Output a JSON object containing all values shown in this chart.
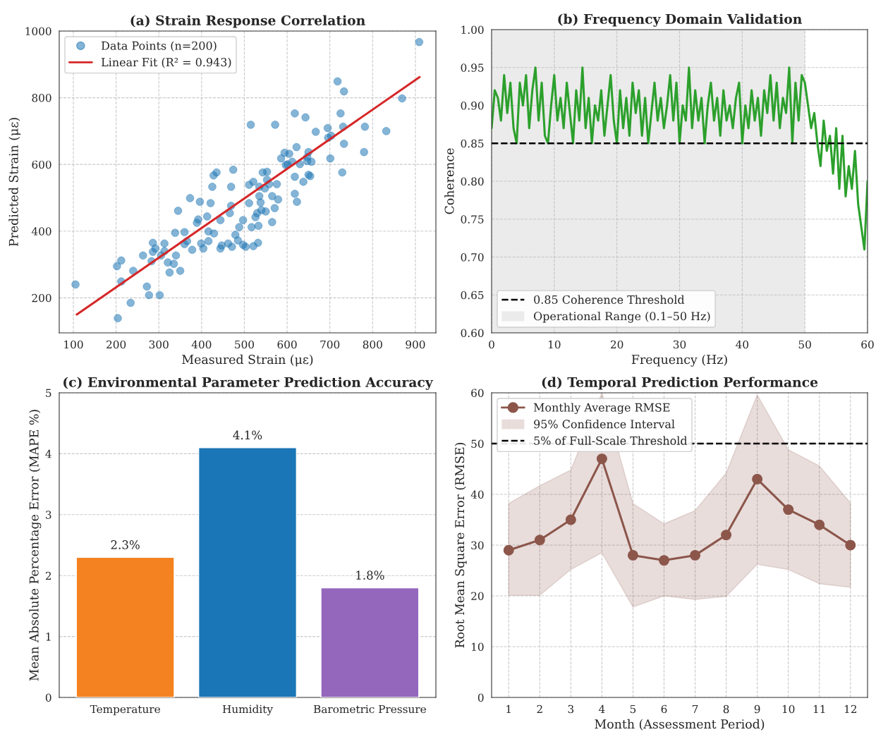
{
  "chart_data": [
    {
      "type": "scatter",
      "title": "(a) Strain Response Correlation",
      "xlabel": "Measured Strain (με)",
      "ylabel": "Predicted Strain (με)",
      "xlim": [
        67,
        948
      ],
      "ylim": [
        95,
        1000
      ],
      "xticks": [
        100,
        200,
        300,
        400,
        500,
        600,
        700,
        800,
        900
      ],
      "yticks": [
        200,
        400,
        600,
        800,
        1000
      ],
      "grid": true,
      "legend": "top left",
      "series": [
        {
          "type": "scatter",
          "name": "Data Points (n=200)",
          "color": "#1f77b4",
          "marker": "circle",
          "x": [
            105,
            204,
            202,
            212,
            212,
            234,
            240,
            272,
            277,
            302,
            283,
            263,
            286,
            286,
            292,
            313,
            313,
            325,
            335,
            340,
            350,
            338,
            345,
            373,
            360,
            366,
            378,
            389,
            399,
            404,
            416,
            429,
            428,
            435,
            425,
            413,
            421,
            396,
            444,
            447,
            469,
            474,
            469,
            479,
            471,
            462,
            466,
            497,
            497,
            517,
            533,
            532,
            511,
            515,
            535,
            538,
            543,
            548,
            565,
            572,
            576,
            579,
            571,
            597,
            605,
            601,
            618,
            622,
            612,
            618,
            618,
            623,
            643,
            647,
            647,
            657,
            654,
            667,
            695,
            696,
            701,
            718,
            725,
            733,
            729,
            733,
            731,
            782,
            780,
            832,
            869,
            909,
            526,
            565,
            550,
            540,
            503,
            444,
            488,
            416,
            485,
            521,
            530,
            553,
            586,
            553,
            594,
            638,
            650,
            703,
            650,
            630,
            392,
            360,
            321,
            305,
            535,
            558,
            511,
            521
          ],
          "values": [
            240,
            139,
            295,
            312,
            249,
            185,
            281,
            234,
            208,
            208,
            310,
            327,
            365,
            338,
            348,
            340,
            363,
            276,
            302,
            327,
            281,
            395,
            461,
            499,
            397,
            370,
            344,
            425,
            363,
            348,
            370,
            393,
            567,
            576,
            533,
            444,
            484,
            488,
            433,
            357,
            533,
            584,
            476,
            389,
            353,
            363,
            454,
            433,
            359,
            412,
            416,
            365,
            484,
            719,
            505,
            486,
            576,
            528,
            505,
            719,
            541,
            495,
            469,
            598,
            632,
            600,
            753,
            652,
            608,
            563,
            512,
            488,
            741,
            622,
            610,
            608,
            565,
            698,
            709,
            680,
            618,
            849,
            753,
            819,
            576,
            662,
            713,
            713,
            637,
            700,
            798,
            967,
            442,
            427,
            459,
            463,
            353,
            348,
            412,
            399,
            372,
            355,
            454,
            554,
            618,
            578,
            635,
            548,
            569,
            686,
            637,
            601,
            435,
            361,
            306,
            327,
            533,
            541,
            539,
            548
          ]
        },
        {
          "type": "line",
          "name": "Linear Fit (R² = 0.943)",
          "color": "#d62728",
          "x": [
            108,
            910
          ],
          "values": [
            150,
            862
          ]
        }
      ]
    },
    {
      "type": "line",
      "title": "(b) Frequency Domain Validation",
      "xlabel": "Frequency (Hz)",
      "ylabel": "Coherence",
      "xlim": [
        0,
        60
      ],
      "ylim": [
        0.6,
        1.0
      ],
      "xticks": [
        0,
        10,
        20,
        30,
        40,
        50,
        60
      ],
      "yticks": [
        {
          "value": 0.6,
          "label": "0.60"
        },
        {
          "value": 0.65,
          "label": "0.65"
        },
        {
          "value": 0.7,
          "label": "0.70"
        },
        {
          "value": 0.75,
          "label": "0.75"
        },
        {
          "value": 0.8,
          "label": "0.80"
        },
        {
          "value": 0.85,
          "label": "0.85"
        },
        {
          "value": 0.9,
          "label": "0.90"
        },
        {
          "value": 0.95,
          "label": "0.95"
        },
        {
          "value": 1.0,
          "label": "1.00"
        }
      ],
      "grid": true,
      "legend": "bottom left",
      "ref_lines": [
        {
          "axis": "y",
          "value": 0.85,
          "label": "0.85 Coherence Threshold",
          "color": "#000000",
          "line_style": "dashed"
        }
      ],
      "bands": [
        {
          "axis": "x",
          "from": 0.1,
          "to": 50,
          "label": "Operational Range (0.1–50 Hz)",
          "color": "#ebebeb"
        }
      ],
      "series": [
        {
          "type": "line",
          "color": "#2ca02c",
          "x": [
            0,
            0.5,
            1,
            1.5,
            2,
            2.5,
            3,
            3.5,
            4,
            4.5,
            5,
            5.5,
            6,
            6.5,
            7,
            7.5,
            8,
            8.5,
            9,
            9.5,
            10,
            10.5,
            11,
            11.5,
            12,
            12.5,
            13,
            13.5,
            14,
            14.5,
            15,
            15.5,
            16,
            16.5,
            17,
            17.5,
            18,
            18.5,
            19,
            19.5,
            20,
            20.5,
            21,
            21.5,
            22,
            22.5,
            23,
            23.5,
            24,
            24.5,
            25,
            25.5,
            26,
            26.5,
            27,
            27.5,
            28,
            28.5,
            29,
            29.5,
            30,
            30.5,
            31,
            31.5,
            32,
            32.5,
            33,
            33.5,
            34,
            34.5,
            35,
            35.5,
            36,
            36.5,
            37,
            37.5,
            38,
            38.5,
            39,
            39.5,
            40,
            40.5,
            41,
            41.5,
            42,
            42.5,
            43,
            43.5,
            44,
            44.5,
            45,
            45.5,
            46,
            46.5,
            47,
            47.5,
            48,
            48.5,
            49,
            49.5,
            50,
            50.5,
            51,
            51.5,
            52,
            52.5,
            53,
            53.5,
            54,
            54.5,
            55,
            55.5,
            56,
            56.5,
            57,
            57.5,
            58,
            58.5,
            59,
            59.5,
            60
          ],
          "values": [
            0.87,
            0.92,
            0.91,
            0.88,
            0.94,
            0.89,
            0.93,
            0.87,
            0.85,
            0.93,
            0.9,
            0.94,
            0.87,
            0.92,
            0.95,
            0.88,
            0.93,
            0.86,
            0.85,
            0.9,
            0.94,
            0.88,
            0.91,
            0.87,
            0.93,
            0.89,
            0.85,
            0.92,
            0.88,
            0.95,
            0.87,
            0.91,
            0.85,
            0.9,
            0.88,
            0.92,
            0.86,
            0.9,
            0.94,
            0.88,
            0.85,
            0.92,
            0.87,
            0.91,
            0.86,
            0.93,
            0.89,
            0.92,
            0.86,
            0.91,
            0.85,
            0.89,
            0.93,
            0.88,
            0.91,
            0.87,
            0.9,
            0.94,
            0.88,
            0.93,
            0.85,
            0.9,
            0.88,
            0.95,
            0.87,
            0.92,
            0.88,
            0.91,
            0.85,
            0.9,
            0.93,
            0.88,
            0.91,
            0.86,
            0.92,
            0.88,
            0.9,
            0.87,
            0.91,
            0.93,
            0.85,
            0.9,
            0.87,
            0.92,
            0.88,
            0.91,
            0.86,
            0.92,
            0.89,
            0.94,
            0.88,
            0.93,
            0.87,
            0.91,
            0.89,
            0.95,
            0.85,
            0.93,
            0.88,
            0.94,
            0.93,
            0.9,
            0.87,
            0.89,
            0.85,
            0.82,
            0.88,
            0.84,
            0.86,
            0.81,
            0.87,
            0.79,
            0.86,
            0.78,
            0.82,
            0.79,
            0.84,
            0.77,
            0.74,
            0.71,
            0.8
          ]
        }
      ]
    },
    {
      "type": "bar",
      "title": "(c) Environmental Parameter Prediction Accuracy",
      "ylabel": "Mean Absolute Percentage Error (MAPE %)",
      "categories": [
        "Temperature",
        "Humidity",
        "Barometric Pressure"
      ],
      "values": [
        2.3,
        4.1,
        1.8
      ],
      "colors": [
        "#f58220",
        "#1a76b6",
        "#9467bd"
      ],
      "value_labels": [
        "2.3%",
        "4.1%",
        "1.8%"
      ],
      "ylim": [
        0,
        5
      ],
      "yticks": [
        0,
        1,
        2,
        3,
        4,
        5
      ],
      "grid": "y"
    },
    {
      "type": "line",
      "title": "(d) Temporal Prediction Performance",
      "xlabel": "Month (Assessment Period)",
      "ylabel": "Root Mean Square Error (RMSE)",
      "annotations": [
        "95% Confidence Interval"
      ],
      "xlim": [
        0.45,
        12.55
      ],
      "ylim": [
        0,
        60
      ],
      "xticks": [
        1,
        2,
        3,
        4,
        5,
        6,
        7,
        8,
        9,
        10,
        11,
        12
      ],
      "yticks": [
        0,
        10,
        20,
        30,
        40,
        50,
        60
      ],
      "grid": true,
      "legend": "top left",
      "ref_lines": [
        {
          "axis": "y",
          "value": 50,
          "label": "5% of Full-Scale Threshold",
          "color": "#000000",
          "line_style": "dashed"
        }
      ],
      "series": [
        {
          "type": "line",
          "name": "Monthly Average RMSE",
          "color": "#8c564b",
          "marker": "circle",
          "x": [
            1,
            2,
            3,
            4,
            5,
            6,
            7,
            8,
            9,
            10,
            11,
            12
          ],
          "values": [
            29,
            31,
            35,
            47,
            28,
            27,
            28,
            32,
            43,
            37,
            34,
            30
          ],
          "lower": [
            20.1,
            20.1,
            25.2,
            28.5,
            17.8,
            20.0,
            19.3,
            19.9,
            26.2,
            25.2,
            22.4,
            21.7
          ],
          "upper": [
            38.2,
            41.7,
            44.8,
            60,
            38.2,
            34.2,
            36.8,
            44.2,
            59.6,
            48.8,
            45.6,
            38.3
          ]
        }
      ]
    }
  ]
}
